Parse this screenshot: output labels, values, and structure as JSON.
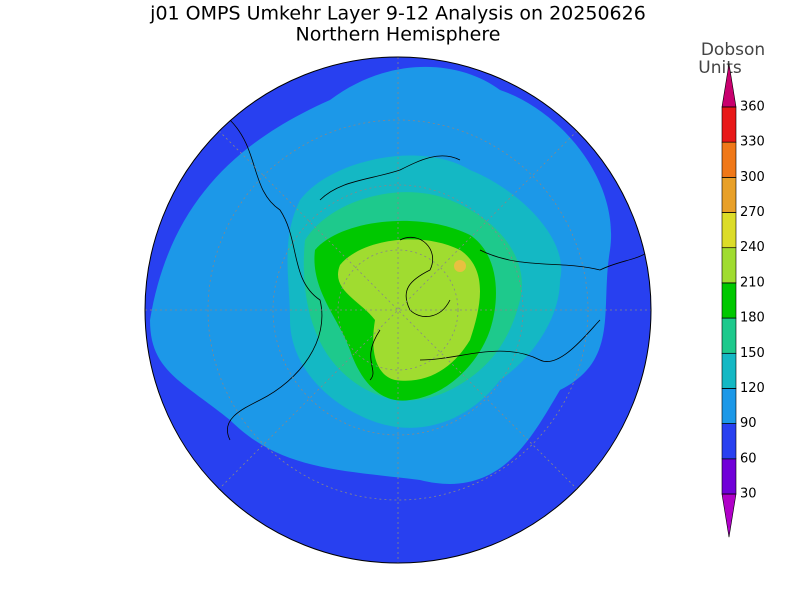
{
  "title": "j01 OMPS Umkehr Layer 9-12 Analysis on 20250626",
  "subtitle": "Northern Hemisphere",
  "colorbar": {
    "label": [
      "Dobson",
      "Units"
    ],
    "ticks": [
      30,
      60,
      90,
      120,
      150,
      180,
      210,
      240,
      270,
      300,
      330,
      360
    ],
    "under_color": "#b000c8",
    "colors": [
      "#7000d8",
      "#2840f0",
      "#1c98e8",
      "#14b8c4",
      "#1ec98c",
      "#00c800",
      "#a0dc30",
      "#dcdc28",
      "#e8a028",
      "#f07818",
      "#e81818"
    ],
    "over_color": "#c8006e"
  }
}
